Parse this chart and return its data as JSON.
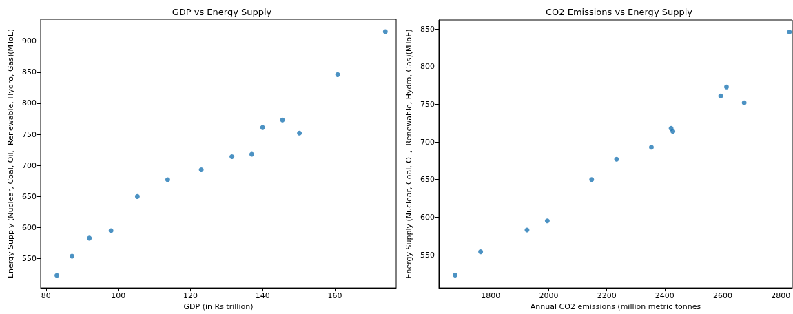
{
  "chart_data": [
    {
      "type": "scatter",
      "title": "GDP vs Energy Supply",
      "xlabel": "GDP (in Rs trillion)",
      "ylabel": "Energy Supply (Nuclear, Coal, Oil,  Renewable, Hydro, Gas)(MToE)",
      "xlim": [
        78.5,
        177
      ],
      "xticks": [
        80,
        100,
        120,
        140,
        160
      ],
      "ylim": [
        503,
        935
      ],
      "yticks": [
        550,
        600,
        650,
        700,
        750,
        800,
        850,
        900
      ],
      "marker": "circle",
      "grid": false,
      "series": [
        {
          "color": "#1f77b4",
          "x": [
            83,
            87.2,
            92,
            98,
            105.3,
            113.7,
            123,
            131.5,
            137,
            140,
            145.5,
            150.2,
            160.8,
            174
          ],
          "values": [
            523,
            554,
            583,
            595,
            650,
            677,
            693,
            714,
            718,
            761,
            773,
            752,
            846,
            915
          ]
        }
      ]
    },
    {
      "type": "scatter",
      "title": "CO2 Emissions vs Energy Supply",
      "xlabel": "Annual CO2 emissions (million metric tonnes",
      "ylabel": "Energy Supply (Nuclear, Coal, Oil,  Renewable, Hydro, Gas)(MToE)",
      "xlim": [
        1621,
        2840
      ],
      "xticks": [
        1800,
        2000,
        2200,
        2400,
        2600,
        2800
      ],
      "ylim": [
        506,
        862
      ],
      "yticks": [
        550,
        600,
        650,
        700,
        750,
        800,
        850
      ],
      "marker": "circle",
      "grid": false,
      "series": [
        {
          "color": "#1f77b4",
          "x": [
            1677,
            1765,
            1925,
            1995,
            2148,
            2234,
            2354,
            2422,
            2428,
            2593,
            2613,
            2674,
            2830
          ],
          "values": [
            523,
            554,
            583,
            595,
            650,
            677,
            693,
            718,
            714,
            761,
            773,
            752,
            846
          ]
        }
      ]
    }
  ]
}
